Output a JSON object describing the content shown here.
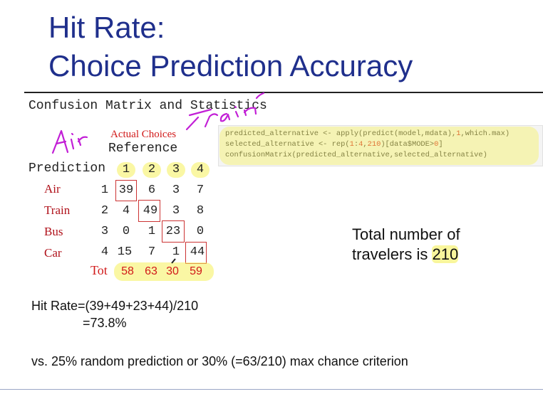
{
  "title": {
    "line1": "Hit Rate:",
    "line2": "Choice Prediction Accuracy"
  },
  "section_heading": "Confusion Matrix and Statistics",
  "annotations": {
    "actual_choices": "Actual Choices",
    "handwriting_air": "Air",
    "handwriting_train": "Train"
  },
  "matrix": {
    "reference_label": "Reference",
    "prediction_label": "Prediction",
    "columns": [
      "1",
      "2",
      "3",
      "4"
    ],
    "rows": [
      {
        "label": "Air",
        "index": "1",
        "values": [
          "39",
          "6",
          "3",
          "7"
        ]
      },
      {
        "label": "Train",
        "index": "2",
        "values": [
          "4",
          "49",
          "3",
          "8"
        ]
      },
      {
        "label": "Bus",
        "index": "3",
        "values": [
          "0",
          "1",
          "23",
          "0"
        ]
      },
      {
        "label": "Car",
        "index": "4",
        "values": [
          "15",
          "7",
          "1",
          "44"
        ]
      }
    ],
    "totals_label": "Tot",
    "totals": [
      "58",
      "63",
      "30",
      "59"
    ]
  },
  "code": {
    "line1_a": "predicted_alternative <- apply(predict(model,mdata),",
    "line1_num": "1",
    "line1_b": ",which.max)",
    "line2_a": "selected_alternative <- rep(",
    "line2_num1": "1",
    "line2_b": ":",
    "line2_num2": "4",
    "line2_c": ",",
    "line2_num3": "210",
    "line2_d": ")[data$MODE>",
    "line2_num4": "0",
    "line2_e": "]",
    "line3": "confusionMatrix(predicted_alternative,selected_alternative)"
  },
  "total_travelers": {
    "line1": "Total number of",
    "line2_prefix": "travelers is ",
    "line2_value": "210"
  },
  "hit_rate": {
    "line1": "Hit Rate=(39+49+23+44)/210",
    "line2": "=73.8%"
  },
  "comparison": "vs. 25% random prediction or 30% (=63/210) max chance criterion",
  "colors": {
    "title": "#1f2f8c",
    "accent_red": "#d11a1a",
    "highlight": "#f5f05a",
    "pen": "#c21fd6"
  }
}
